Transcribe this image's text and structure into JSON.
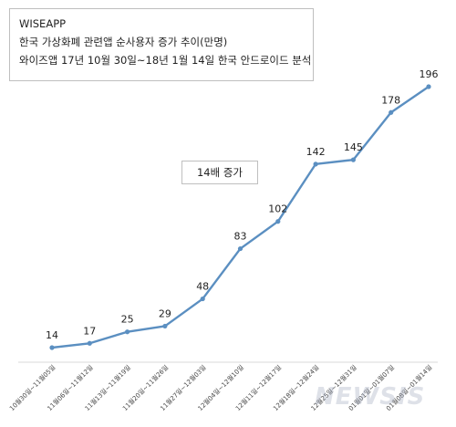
{
  "header": {
    "lines": [
      "WISEAPP",
      "한국 가상화폐 관련앱 순사용자 증가 추이(만명)",
      "와이즈앱 17년 10월 30일~18년 1월 14일 한국 안드로이드 분석"
    ]
  },
  "annotation": "14배 증가",
  "watermark": "NEWSIS",
  "colors": {
    "line": "#5b8fc1"
  },
  "chart_data": {
    "type": "line",
    "categories": [
      "10월30일~11월05일",
      "11월06일~11월12일",
      "11월13일~11월19일",
      "11월20일~11월26일",
      "11월27일~12월03일",
      "12월04일~12월10일",
      "12월11일~12월17일",
      "12월18일~12월24일",
      "12월25일~12월31일",
      "01월01일~01월07일",
      "01월08일~01월14일"
    ],
    "series": [
      {
        "values": [
          14,
          17,
          25,
          29,
          48,
          83,
          102,
          142,
          145,
          178,
          196
        ]
      }
    ],
    "grid": false
  }
}
